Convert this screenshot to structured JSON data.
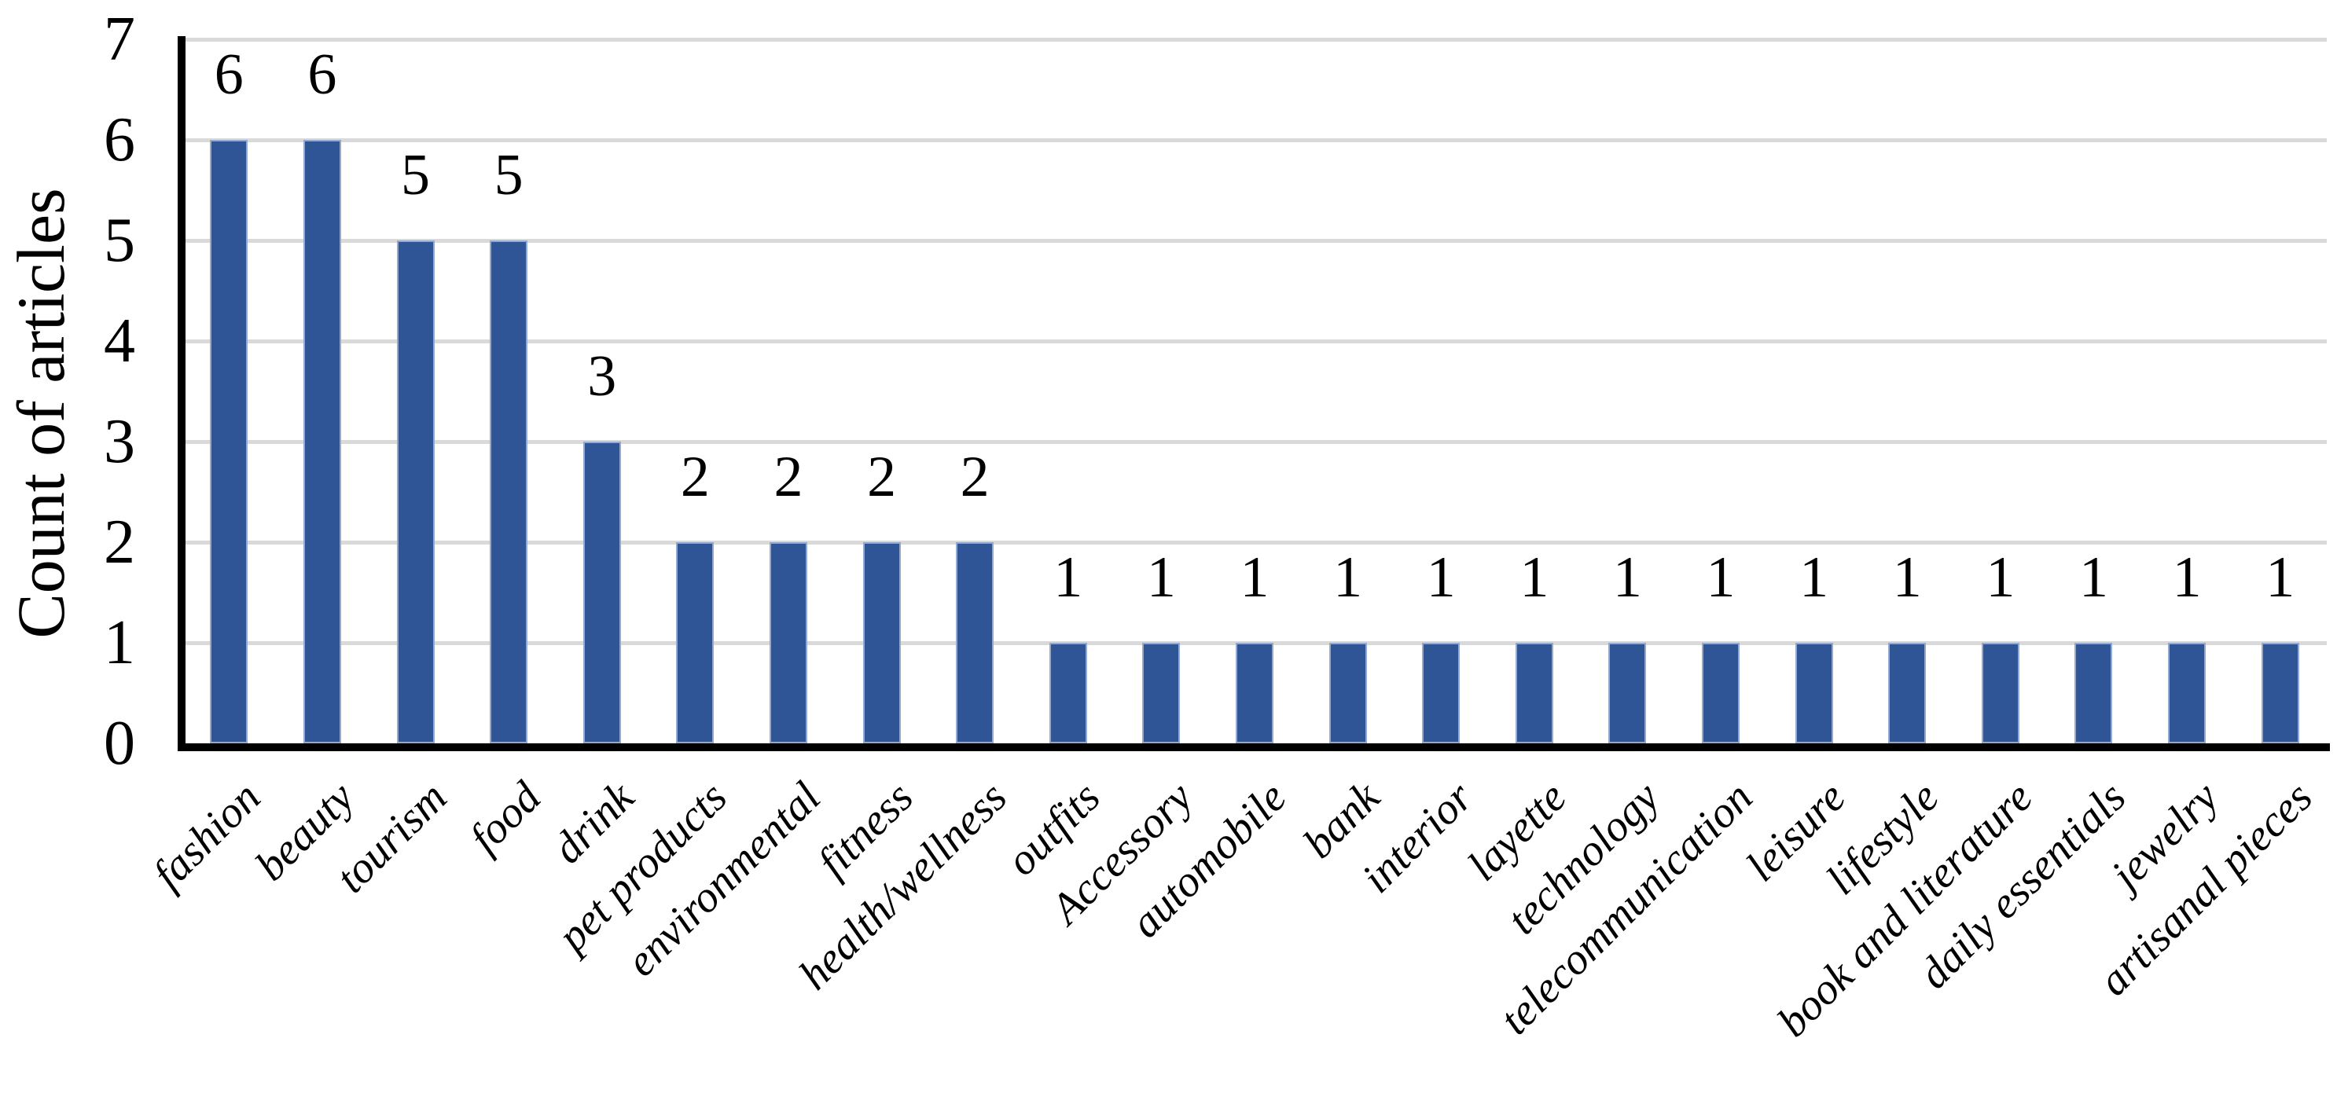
{
  "chart_data": {
    "type": "bar",
    "title": "",
    "xlabel": "",
    "ylabel": "Count of articles",
    "categories": [
      "fashion",
      "beauty",
      "tourism",
      "food",
      "drink",
      "pet products",
      "environmental",
      "fitness",
      "health/wellness",
      "outfits",
      "Accessory",
      "automobile",
      "bank",
      "interior",
      "layette",
      "technology",
      "telecommunication",
      "leisure",
      "lifestyle",
      "book and literature",
      "daily essentials",
      "jewelry",
      "artisanal pieces"
    ],
    "values": [
      6,
      6,
      5,
      5,
      3,
      2,
      2,
      2,
      2,
      1,
      1,
      1,
      1,
      1,
      1,
      1,
      1,
      1,
      1,
      1,
      1,
      1,
      1
    ],
    "data_labels": [
      6,
      6,
      5,
      5,
      3,
      2,
      2,
      2,
      2,
      1,
      1,
      1,
      1,
      1,
      1,
      1,
      1,
      1,
      1,
      1,
      1,
      1,
      1
    ],
    "ylim": [
      0,
      7
    ],
    "yticks": [
      0,
      1,
      2,
      3,
      4,
      5,
      6,
      7
    ],
    "grid": "horizontal",
    "legend": "none",
    "colors": {
      "bar_fill": "#2F5596",
      "bar_border": "#93A9CE",
      "gridline": "#D9D9D9",
      "axis": "#000000",
      "text": "#000000"
    }
  }
}
